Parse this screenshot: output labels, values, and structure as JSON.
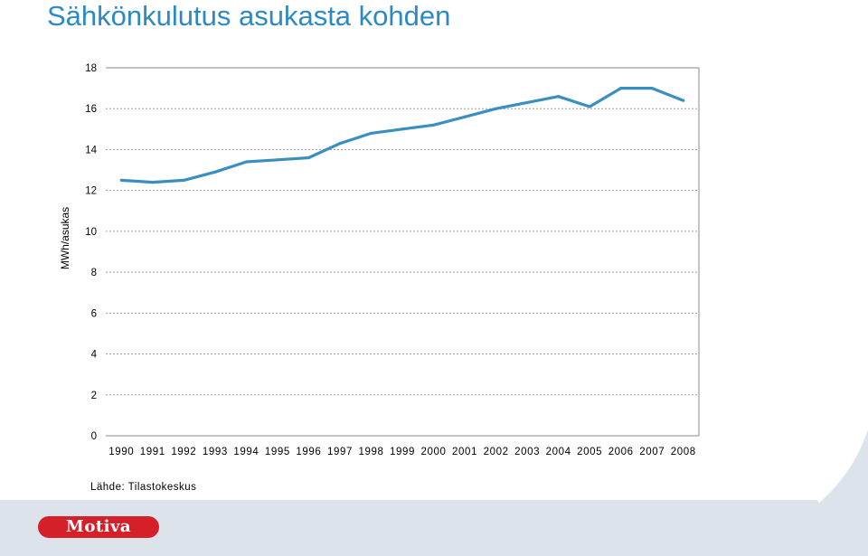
{
  "title": "Sähkönkulutus asukasta kohden",
  "source": "Lähde: Tilastokeskus",
  "logo_text": "Motiva",
  "colors": {
    "title": "#2b8ac6",
    "line": "#3a8fc0",
    "grid": "#9a9a9a",
    "footer": "#dde3ea",
    "logo": "#d62029"
  },
  "chart_data": {
    "type": "line",
    "ylabel": "MWh/asukas",
    "xlabel": "",
    "ylim": [
      0,
      18
    ],
    "yticks": [
      0,
      2,
      4,
      6,
      8,
      10,
      12,
      14,
      16,
      18
    ],
    "grid": true,
    "categories": [
      "1990",
      "1991",
      "1992",
      "1993",
      "1994",
      "1995",
      "1996",
      "1997",
      "1998",
      "1999",
      "2000",
      "2001",
      "2002",
      "2003",
      "2004",
      "2005",
      "2006",
      "2007",
      "2008"
    ],
    "series": [
      {
        "values": [
          12.5,
          12.4,
          12.5,
          12.9,
          13.4,
          13.5,
          13.6,
          14.3,
          14.8,
          15.0,
          15.2,
          15.6,
          16.0,
          16.3,
          16.6,
          16.1,
          17.0,
          17.0,
          16.4
        ]
      }
    ]
  }
}
